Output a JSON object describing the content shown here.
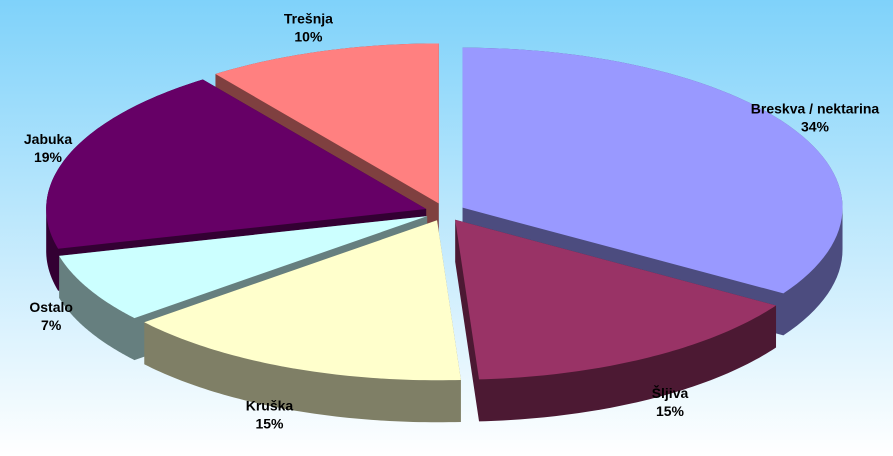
{
  "chart_data": {
    "type": "pie",
    "categories": [
      "Breskva / nektarina",
      "Šljiva",
      "Kruška",
      "Ostalo",
      "Jabuka",
      "Trešnja"
    ],
    "values": [
      34,
      15,
      15,
      7,
      19,
      10
    ],
    "value_labels": [
      "34%",
      "15%",
      "15%",
      "7%",
      "19%",
      "10%"
    ],
    "colors": [
      "#9999ff",
      "#993366",
      "#ffffcc",
      "#ccffff",
      "#660066",
      "#ff8080"
    ]
  }
}
